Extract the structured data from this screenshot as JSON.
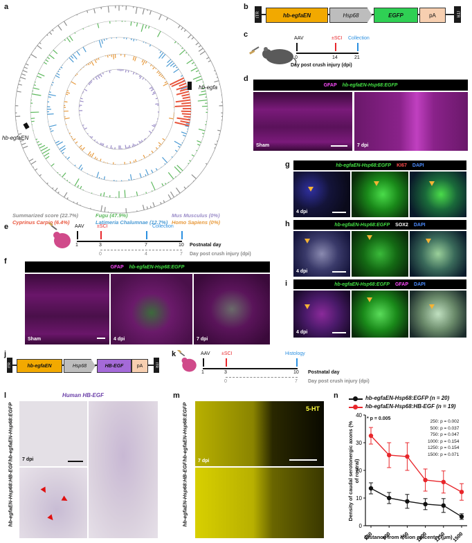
{
  "panels": {
    "a": "a",
    "b": "b",
    "c": "c",
    "d": "d",
    "e": "e",
    "f": "f",
    "g": "g",
    "h": "h",
    "i": "i",
    "j": "j",
    "k": "k",
    "l": "l",
    "m": "m",
    "n": "n"
  },
  "panel_a": {
    "gene_top": "hb-egfa",
    "gene_bottom": "hb-egfaEN",
    "legend": [
      {
        "label": "Summarized score (22.7%)",
        "color": "#8c8c8c"
      },
      {
        "label": "Cyprinus Carpio (6.4%)",
        "color": "#e8553c"
      },
      {
        "label": "Fugu (47.9%)",
        "color": "#5cb85c"
      },
      {
        "label": "Latimeria Chalumnae (12.7%)",
        "color": "#4a9ad4"
      },
      {
        "label": "Mus Musculus (0%)",
        "color": "#9a8cc8"
      },
      {
        "label": "Homo Sapiens (0%)",
        "color": "#e89a3c"
      }
    ]
  },
  "construct_b": {
    "itr_left": "ITR",
    "enhancer": "hb-egfaEN",
    "promoter": "Hsp68",
    "reporter": "EGFP",
    "pa": "pA",
    "itr_right": "ITR"
  },
  "construct_j": {
    "itr_left": "ITR",
    "enhancer": "hb-egfaEN",
    "promoter": "Hsp68",
    "reporter": "HB-EGF",
    "pa": "pA",
    "itr_right": "ITR"
  },
  "timeline_c": {
    "aav": "AAV",
    "sci": "±SCI",
    "collection": "Collection",
    "ticks": [
      "0",
      "14",
      "21"
    ],
    "axis_label": "Day post crush injury (dpi)"
  },
  "timeline_e": {
    "aav": "AAV",
    "sci": "±SCI",
    "collection": "Collection",
    "ticks_top": [
      "1",
      "3",
      "7",
      "10"
    ],
    "ticks_bottom": [
      "0",
      "4",
      "7"
    ],
    "label_top": "Postnatal day",
    "label_bottom": "Day post crush injury (dpi)"
  },
  "timeline_k": {
    "aav": "AAV",
    "sci": "±SCI",
    "histology": "Histology",
    "ticks_top": [
      "1",
      "3",
      "10"
    ],
    "ticks_bottom": [
      "0",
      "7"
    ],
    "label_top": "Postnatal day",
    "label_bottom": "Day post crush injury (dpi)"
  },
  "panel_d": {
    "marker1": "GFAP",
    "marker2": "hb-egfaEN-Hsp68:EGFP",
    "left": "Sham",
    "right": "7 dpi"
  },
  "panel_f": {
    "marker1": "GFAP",
    "marker2": "hb-egfaEN-Hsp68:EGFP",
    "tiles": [
      "Sham",
      "4 dpi",
      "7 dpi"
    ]
  },
  "panel_g": {
    "marker1": "hb-egfaEN-Hsp68:EGFP",
    "marker2": "KI67",
    "marker3": "DAPI",
    "time": "4 dpi"
  },
  "panel_h": {
    "marker1": "hb-egfaEN-Hsp68:EGFP",
    "marker2": "SOX2",
    "marker3": "DAPI",
    "time": "4 dpi"
  },
  "panel_i": {
    "marker1": "hb-egfaEN-Hsp68:EGFP",
    "marker2": "GFAP",
    "marker3": "DAPI",
    "time": "4 dpi"
  },
  "panel_l": {
    "title": "Human HB-EGF",
    "row1": "hb-egfaEN-Hsp68:EGFP",
    "row2": "hb-egfaEN-Hsp68:HB-EGF",
    "time": "7 dpi"
  },
  "panel_m": {
    "marker": "5-HT",
    "row1": "hb-egfaEN-Hsp68:EGFP",
    "row2": "hb-egfaEN-Hsp68:HB-EGF",
    "time": "7 dpi"
  },
  "chart_data": {
    "type": "line",
    "x": [
      250,
      500,
      750,
      1000,
      1250,
      1500
    ],
    "xlabel": "Distance from lesion epicenter (µm)",
    "ylabel": "Density of caudal serotonergic axons (% of rostral)",
    "ylim": [
      0,
      40
    ],
    "yticks": [
      "0",
      "10",
      "20",
      "30",
      "40"
    ],
    "xticks": [
      "250",
      "500",
      "750",
      "1000",
      "1250",
      "1500"
    ],
    "series": [
      {
        "name": "hb-egfaEN-Hsp68:EGFP (n = 20)",
        "color": "#111111",
        "values": [
          13.5,
          10,
          8.8,
          7.8,
          7.3,
          3.3
        ],
        "err": [
          2,
          2,
          2.5,
          2,
          2.5,
          1
        ]
      },
      {
        "name": "hb-egfaEN-Hsp68:HB-EGF (n = 19)",
        "color": "#e8262b",
        "values": [
          32.5,
          25.5,
          25,
          16.5,
          15.8,
          12.2
        ],
        "err": [
          3,
          4.5,
          5,
          4,
          4,
          3
        ]
      }
    ],
    "annotations": {
      "overall": "* p = 0.005",
      "pvalues": [
        "250: p = 0.002",
        "500: p = 0.037",
        "750: p = 0.047",
        "1000: p = 0.154",
        "1250: p = 0.154",
        "1500: p = 0.071"
      ]
    }
  }
}
